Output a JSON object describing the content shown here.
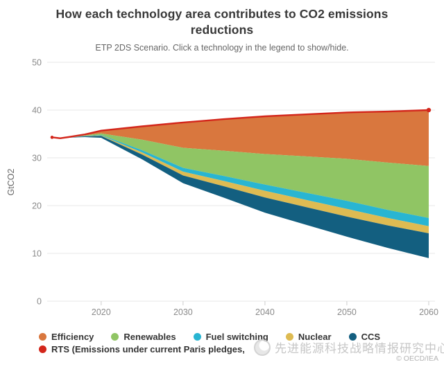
{
  "header": {
    "title": "How each technology area contributes to CO2 emissions reductions",
    "subtitle": "ETP 2DS Scenario. Click a technology in the legend to show/hide."
  },
  "axes": {
    "ylabel": "GtCO2",
    "ytick_labels": [
      "0",
      "10",
      "20",
      "30",
      "40",
      "50"
    ],
    "xtick_labels": [
      "2020",
      "2030",
      "2040",
      "2050",
      "2060"
    ]
  },
  "legend": {
    "row1": [
      {
        "label": "Efficiency",
        "color": "#d9773e"
      },
      {
        "label": "Renewables",
        "color": "#90c564"
      },
      {
        "label": "Fuel switching",
        "color": "#29b5d2"
      },
      {
        "label": "Nuclear",
        "color": "#debb52"
      },
      {
        "label": "CCS",
        "color": "#135f80"
      }
    ],
    "row2": [
      {
        "label": "RTS (Emissions under current Paris pledges,",
        "color": "#d3261b"
      }
    ]
  },
  "watermark": {
    "text": "先进能源科技战略情报研究中心",
    "copyright": "© OECD/IEA"
  },
  "chart_data": {
    "type": "area",
    "title": "How each technology area contributes to CO2 emissions reductions",
    "subtitle": "ETP 2DS Scenario. Click a technology in the legend to show/hide.",
    "xlabel": "",
    "ylabel": "GtCO2",
    "ylim": [
      0,
      50
    ],
    "yticks": [
      0,
      10,
      20,
      30,
      40,
      50
    ],
    "xticks": [
      2020,
      2030,
      2040,
      2050,
      2060
    ],
    "xlim": [
      2014,
      2060
    ],
    "grid": "horizontal",
    "legend_position": "bottom",
    "x": [
      2014,
      2015,
      2016,
      2018,
      2020,
      2025,
      2030,
      2035,
      2040,
      2045,
      2050,
      2055,
      2060
    ],
    "line": {
      "name": "RTS (Emissions under current Paris pledges)",
      "color": "#d3261b",
      "values": [
        34.3,
        34.1,
        34.35,
        34.9,
        35.7,
        36.6,
        37.4,
        38.1,
        38.7,
        39.1,
        39.5,
        39.7,
        40.0
      ]
    },
    "stacking_note": "series are reduction wedges stacked downward from the RTS line; bottom edge of CCS wedge is the 2DS emissions trajectory (~34.2 GtCO2 in 2020 falling to ~9 GtCO2 in 2060)",
    "series": [
      {
        "name": "Efficiency",
        "color": "#d9773e",
        "values": [
          0,
          0.02,
          0.05,
          0.2,
          0.6,
          2.8,
          5.3,
          6.6,
          7.9,
          8.8,
          9.7,
          10.7,
          11.7
        ]
      },
      {
        "name": "Renewables",
        "color": "#90c564",
        "values": [
          0,
          0.01,
          0.03,
          0.1,
          0.3,
          2.2,
          4.2,
          5.3,
          6.4,
          7.6,
          8.8,
          9.9,
          10.9
        ]
      },
      {
        "name": "Fuel switching",
        "color": "#29b5d2",
        "values": [
          0,
          0.0,
          0.01,
          0.05,
          0.1,
          0.45,
          0.8,
          1.05,
          1.3,
          1.5,
          1.7,
          1.7,
          1.7
        ]
      },
      {
        "name": "Nuclear",
        "color": "#debb52",
        "values": [
          0,
          0.0,
          0.01,
          0.05,
          0.1,
          0.45,
          0.8,
          1.1,
          1.4,
          1.5,
          1.6,
          1.55,
          1.5
        ]
      },
      {
        "name": "CCS",
        "color": "#135f80",
        "values": [
          0,
          0.01,
          0.03,
          0.15,
          0.4,
          1.0,
          1.6,
          2.4,
          3.2,
          3.7,
          4.2,
          4.7,
          5.2
        ]
      }
    ],
    "colors": {
      "gridline": "#e7e7e7",
      "tick_mark": "#cccccc",
      "axis_text": "#8a8a8a",
      "ylabel_text": "#666666"
    }
  }
}
